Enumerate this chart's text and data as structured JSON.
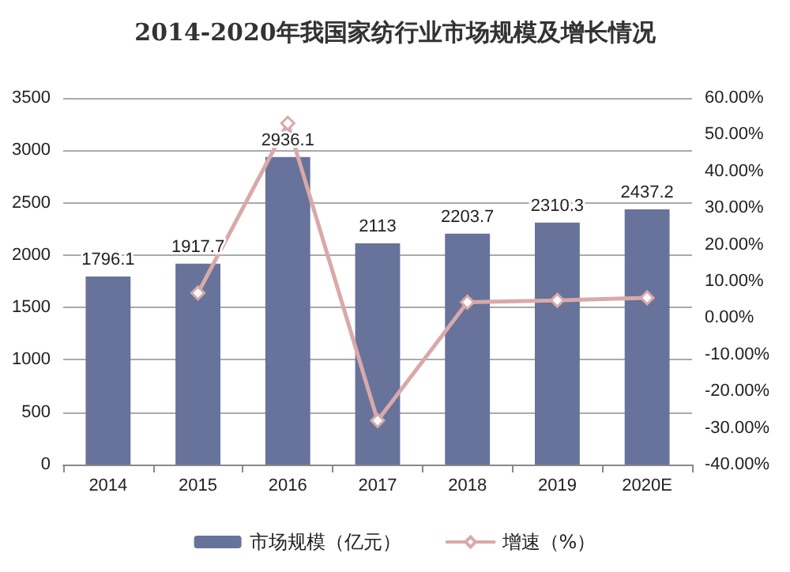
{
  "chart_data": {
    "type": "bar",
    "title": "2014-2020年我国家纺行业市场规模及增长情况",
    "categories": [
      "2014",
      "2015",
      "2016",
      "2017",
      "2018",
      "2019",
      "2020E"
    ],
    "series": [
      {
        "name": "市场规模（亿元）",
        "color": "#67739a",
        "values": [
          1796.1,
          1917.7,
          2936.1,
          2113,
          2203.7,
          2310.3,
          2437.2
        ],
        "value_labels": [
          "1796.1",
          "1917.7",
          "2936.1",
          "2113",
          "2203.7",
          "2310.3",
          "2437.2"
        ]
      },
      {
        "name": "增速（%）",
        "type": "line",
        "axis": "y2",
        "color": "#d9a9a9",
        "marker": "diamond",
        "values": [
          null,
          6.8,
          53.1,
          -28,
          4.3,
          4.8,
          5.5
        ]
      }
    ],
    "ylim": [
      0,
      3500
    ],
    "yticks": [
      0,
      500,
      1000,
      1500,
      2000,
      2500,
      3000,
      3500
    ],
    "y2lim": [
      -40,
      60
    ],
    "y2ticks": [
      {
        "value": -40,
        "label": "-40.00%"
      },
      {
        "value": -30,
        "label": "-30.00%"
      },
      {
        "value": -20,
        "label": "-20.00%"
      },
      {
        "value": -10,
        "label": "-10.00%"
      },
      {
        "value": 0,
        "label": "0.00%"
      },
      {
        "value": 10,
        "label": "10.00%"
      },
      {
        "value": 20,
        "label": "20.00%"
      },
      {
        "value": 30,
        "label": "30.00%"
      },
      {
        "value": 40,
        "label": "40.00%"
      },
      {
        "value": 50,
        "label": "50.00%"
      },
      {
        "value": 60,
        "label": "60.00%"
      }
    ],
    "grid": "y",
    "legend": "bottom"
  }
}
